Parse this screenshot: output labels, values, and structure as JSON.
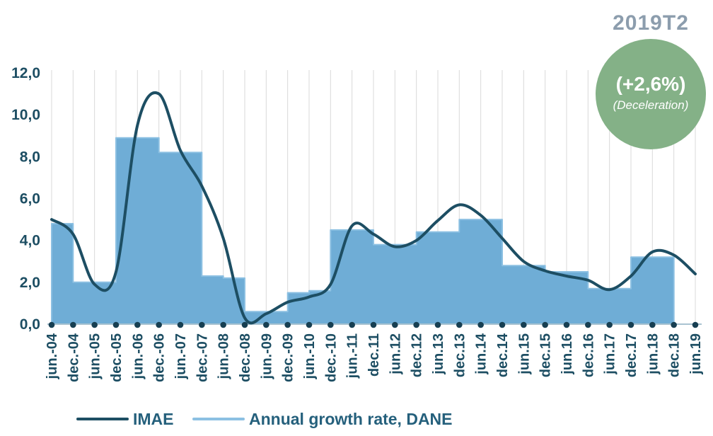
{
  "badge": {
    "period_label": "2019T2",
    "value_label": "(+2,6%)",
    "status_label": "(Deceleration)"
  },
  "legend": {
    "position": "bottom",
    "items": [
      {
        "label": "IMAE",
        "swatch": "dark-line"
      },
      {
        "label": "Annual growth rate, DANE",
        "swatch": "light-blue-line"
      }
    ]
  },
  "colors": {
    "line": "#1d4e63",
    "area_fill": "#6fadd6",
    "area_edge": "#8cc0e2",
    "gridline": "#d9d9d9",
    "baseline": "#a9c3d1",
    "dot": "#173f52",
    "axis_text": "#1d4e63",
    "legend_text": "#25607c",
    "badge_green": "#84b187",
    "badge_period_text": "#8c9dad",
    "badge_inner_text": "#ffffff"
  },
  "chart_data": {
    "type": "combo",
    "title": "",
    "xlabel": "",
    "ylabel": "",
    "ylim": [
      0,
      12
    ],
    "y_ticks": [
      "0,0",
      "2,0",
      "4,0",
      "6,0",
      "8,0",
      "10,0",
      "12,0"
    ],
    "grid": "vertical-only",
    "legend_position": "bottom",
    "x_labels": [
      "jun.-04",
      "dec.-04",
      "jun.-05",
      "dec.-05",
      "jun.-06",
      "dec.-06",
      "jun.-07",
      "dec.-07",
      "jun.-08",
      "dec.-08",
      "jun.-09",
      "dec.-09",
      "jun.-10",
      "dec.-10",
      "jun.-11",
      "dec.11",
      "jun.12",
      "dec.12",
      "jun.13",
      "dec.13",
      "jun.14",
      "dec.14",
      "jun.15",
      "dec.15",
      "jun.16",
      "dec.16",
      "jun.17",
      "dec.17",
      "jun.18",
      "dec.18",
      "jun.19"
    ],
    "series": [
      {
        "name": "IMAE",
        "type": "line",
        "values": [
          5.0,
          4.3,
          1.9,
          2.5,
          9.5,
          11.0,
          8.3,
          6.6,
          4.1,
          0.3,
          0.5,
          1.05,
          1.3,
          1.9,
          4.7,
          4.3,
          3.7,
          4.0,
          4.95,
          5.7,
          5.2,
          4.1,
          3.0,
          2.55,
          2.3,
          2.1,
          1.65,
          2.3,
          3.45,
          3.3,
          2.4
        ]
      },
      {
        "name": "Annual growth rate, DANE",
        "type": "step-area",
        "segments": [
          {
            "period": "2004",
            "from_index": 0,
            "to_index": 1,
            "value": 4.8
          },
          {
            "period": "2005",
            "from_index": 1,
            "to_index": 3,
            "value": 2.0
          },
          {
            "period": "2006",
            "from_index": 3,
            "to_index": 5,
            "value": 8.9
          },
          {
            "period": "2007",
            "from_index": 5,
            "to_index": 7,
            "value": 8.2
          },
          {
            "period": "2008 H1",
            "from_index": 7,
            "to_index": 8,
            "value": 2.3
          },
          {
            "period": "2008 H2",
            "from_index": 8,
            "to_index": 9,
            "value": 2.2
          },
          {
            "period": "2009",
            "from_index": 9,
            "to_index": 11,
            "value": 0.6
          },
          {
            "period": "2010 H1",
            "from_index": 11,
            "to_index": 12,
            "value": 1.5
          },
          {
            "period": "2010 H2",
            "from_index": 12,
            "to_index": 13,
            "value": 1.6
          },
          {
            "period": "2011",
            "from_index": 13,
            "to_index": 15,
            "value": 4.5
          },
          {
            "period": "2012",
            "from_index": 15,
            "to_index": 17,
            "value": 3.8
          },
          {
            "period": "2013",
            "from_index": 17,
            "to_index": 19,
            "value": 4.4
          },
          {
            "period": "2014",
            "from_index": 19,
            "to_index": 21,
            "value": 5.0
          },
          {
            "period": "2015",
            "from_index": 21,
            "to_index": 23,
            "value": 2.8
          },
          {
            "period": "2016",
            "from_index": 23,
            "to_index": 25,
            "value": 2.5
          },
          {
            "period": "2017",
            "from_index": 25,
            "to_index": 27,
            "value": 1.7
          },
          {
            "period": "2018",
            "from_index": 27,
            "to_index": 29,
            "value": 3.2
          }
        ]
      }
    ]
  }
}
